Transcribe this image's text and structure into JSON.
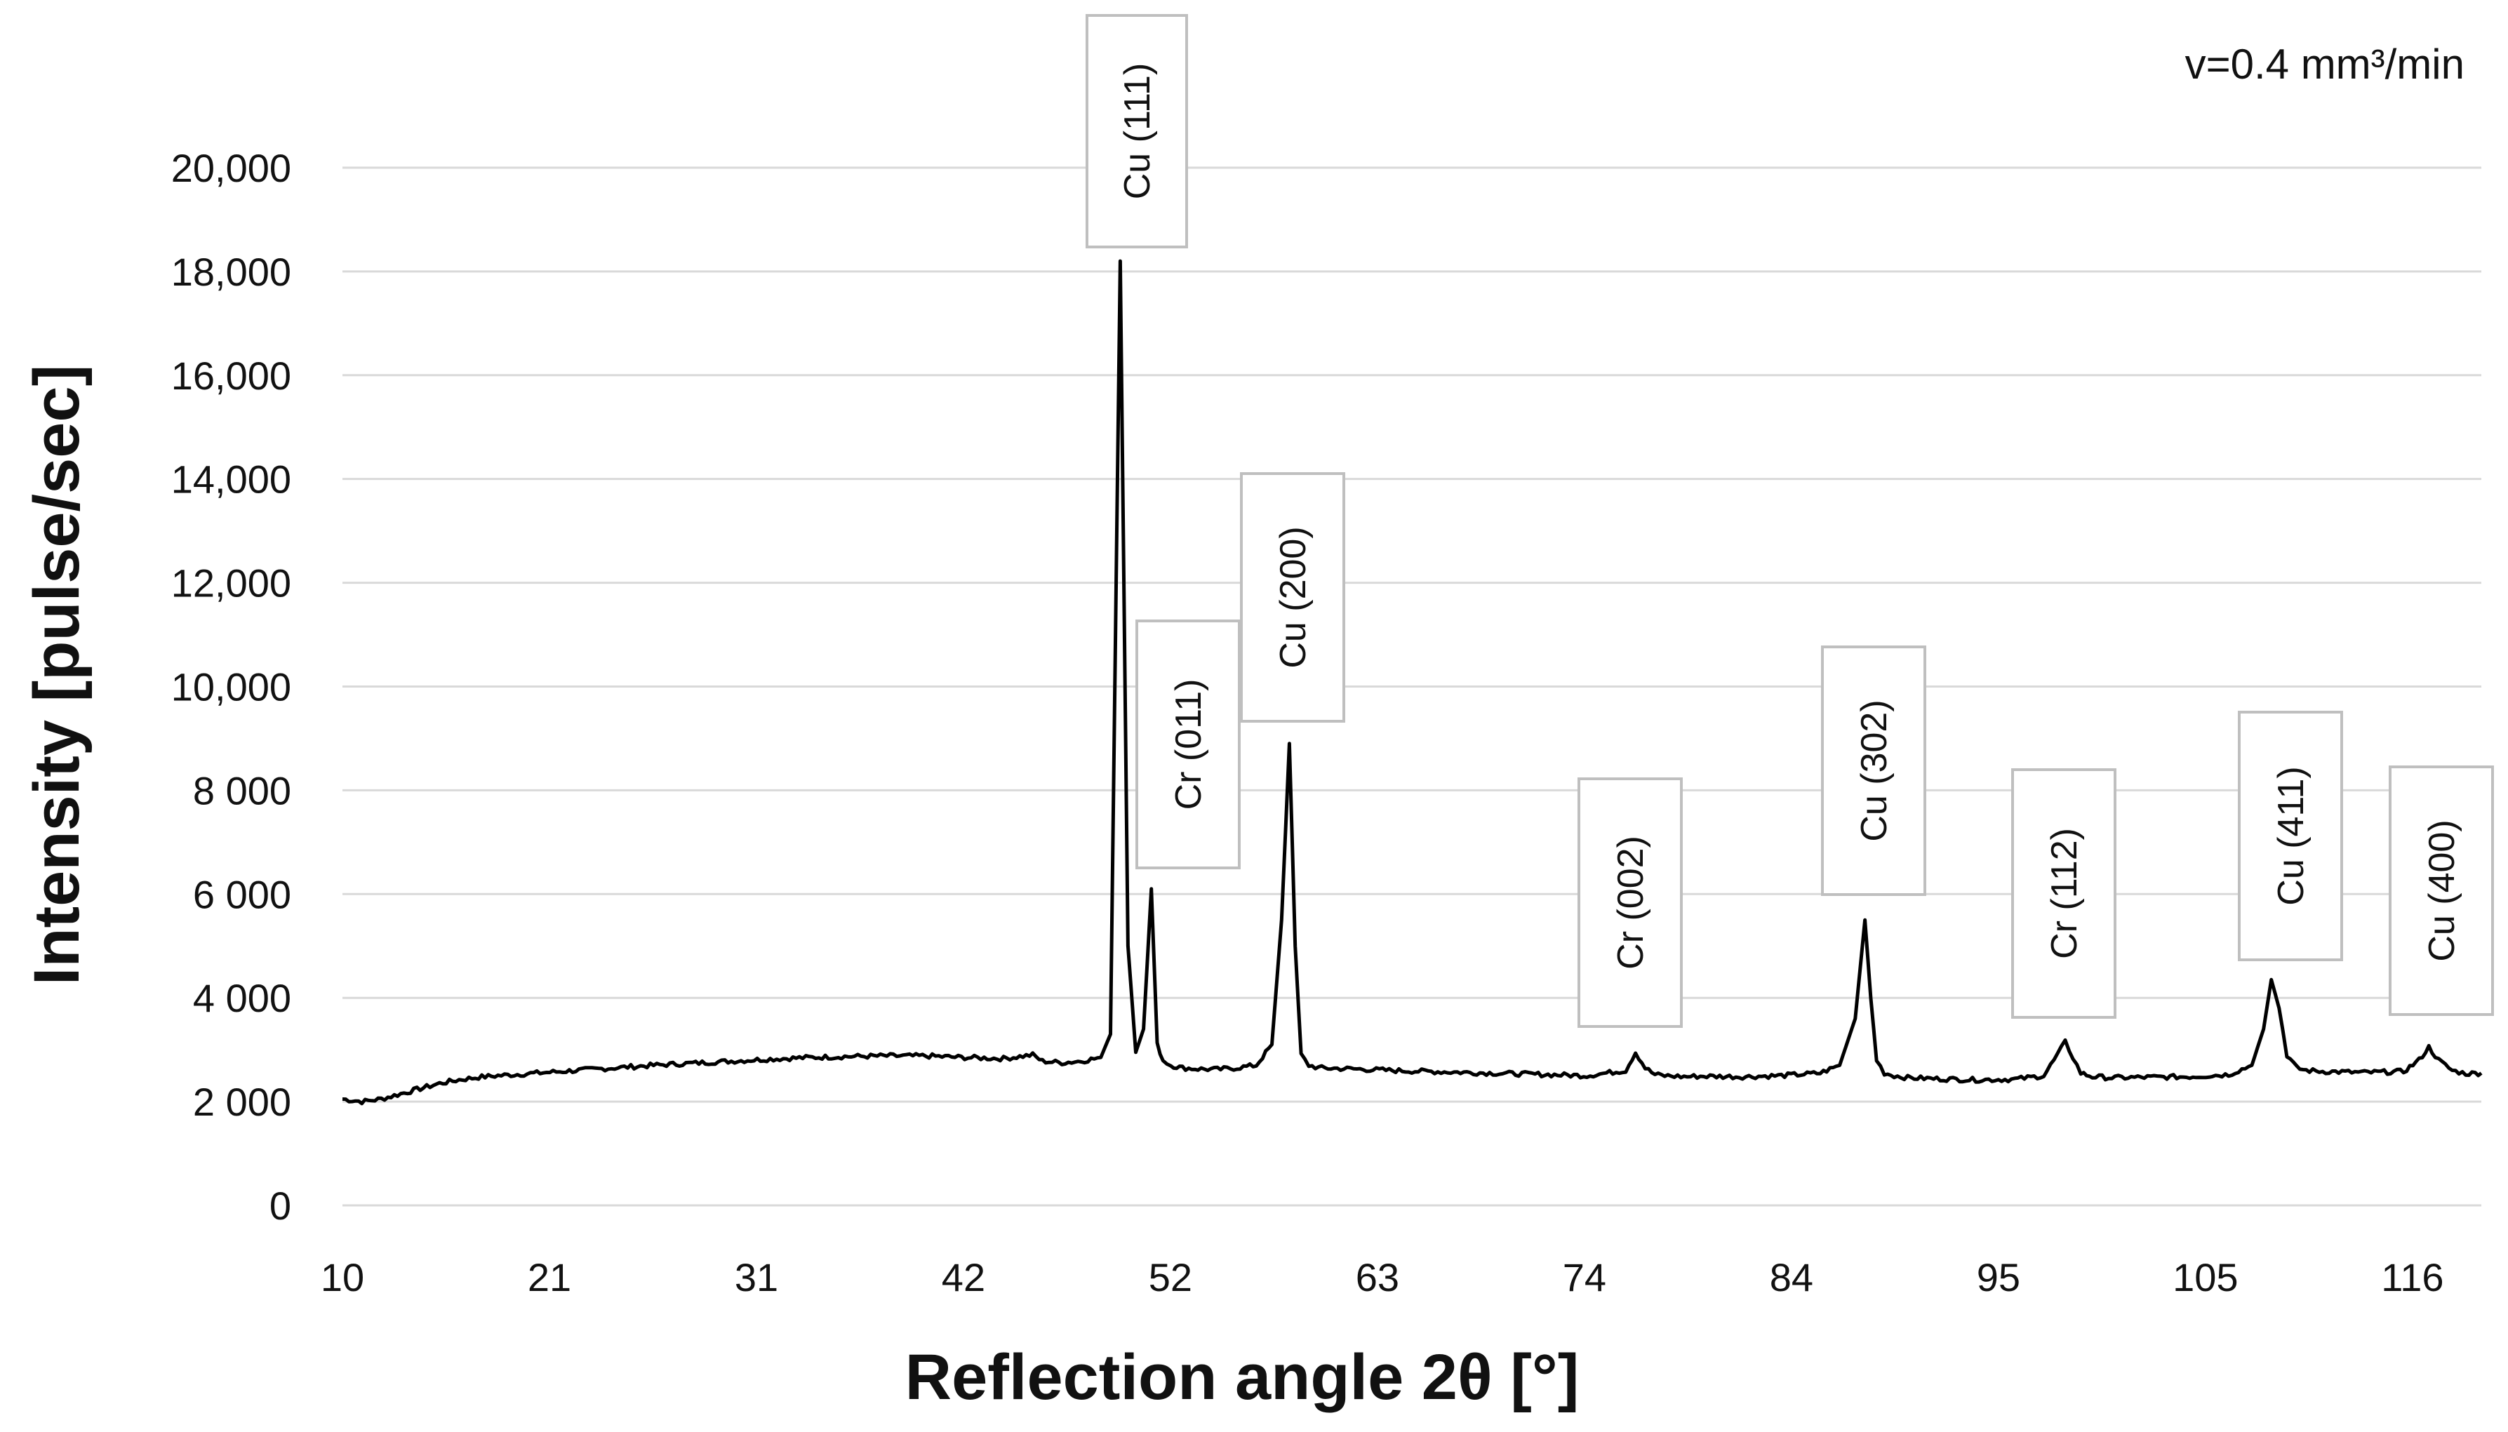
{
  "chart_data": {
    "type": "line",
    "title": "",
    "xlabel": "Reflection angle 2θ [°]",
    "ylabel": "Intensity [pulse/sec]",
    "annotation": "v=0.4 mm³/min",
    "xlim": [
      10,
      120
    ],
    "ylim": [
      0,
      21000
    ],
    "grid": true,
    "x_tick_labels": [
      "10",
      "21",
      "31",
      "42",
      "52",
      "63",
      "74",
      "84",
      "95",
      "105",
      "116"
    ],
    "y_tick_values": [
      0,
      2000,
      4000,
      6000,
      8000,
      10000,
      12000,
      14000,
      16000,
      18000,
      20000
    ],
    "y_tick_labels": [
      "0",
      "2 000",
      "4 000",
      "6 000",
      "8 000",
      "10,000",
      "12,000",
      "14,000",
      "16,000",
      "18,000",
      "20,000"
    ],
    "series": [
      {
        "x": [
          10,
          11,
          12,
          13,
          14,
          15,
          16,
          17,
          18,
          20,
          22,
          24,
          26,
          28,
          30,
          32,
          34,
          36,
          38,
          40,
          42,
          44,
          45.5,
          46,
          47,
          48,
          49,
          49.5,
          50.0,
          50.4,
          50.8,
          51.2,
          51.6,
          51.9,
          52.2,
          52.6,
          53.2,
          54,
          55,
          56,
          57,
          57.8,
          58.3,
          58.7,
          59.0,
          59.3,
          59.7,
          60.2,
          61,
          62,
          64,
          66,
          68,
          70,
          72,
          74,
          76,
          76.5,
          77.0,
          77.5,
          78,
          79,
          80,
          82,
          84,
          86,
          87,
          87.8,
          88.3,
          88.6,
          88.9,
          89.3,
          89.8,
          90.5,
          92,
          94,
          96,
          97.5,
          98.2,
          98.6,
          99.0,
          99.4,
          100,
          101,
          103,
          105,
          107,
          108.2,
          108.8,
          109.2,
          109.6,
          110.0,
          110.5,
          111,
          112,
          114,
          116,
          116.8,
          117.3,
          117.8,
          118.5,
          119.2,
          120
        ],
        "y": [
          2050,
          2000,
          2050,
          2150,
          2250,
          2350,
          2420,
          2470,
          2500,
          2550,
          2600,
          2650,
          2700,
          2740,
          2780,
          2820,
          2850,
          2870,
          2880,
          2880,
          2850,
          2830,
          2900,
          2780,
          2750,
          2780,
          2850,
          3300,
          18200,
          5000,
          2950,
          3400,
          6100,
          3100,
          2800,
          2700,
          2650,
          2630,
          2620,
          2650,
          2700,
          3100,
          5500,
          8900,
          5000,
          2900,
          2700,
          2650,
          2640,
          2630,
          2600,
          2580,
          2560,
          2540,
          2520,
          2500,
          2600,
          2950,
          2650,
          2520,
          2500,
          2480,
          2490,
          2480,
          2500,
          2550,
          2700,
          3600,
          5500,
          4000,
          2800,
          2550,
          2500,
          2460,
          2440,
          2420,
          2430,
          2500,
          2900,
          3150,
          2850,
          2550,
          2480,
          2460,
          2470,
          2480,
          2520,
          2700,
          3400,
          4350,
          3800,
          2900,
          2650,
          2600,
          2580,
          2560,
          2580,
          2800,
          3050,
          2800,
          2600,
          2540,
          2550
        ]
      }
    ],
    "peaks": [
      {
        "label": "Cu (111)",
        "x": 50.0
      },
      {
        "label": "Cr (011)",
        "x": 51.6
      },
      {
        "label": "Cu (200)",
        "x": 58.7
      },
      {
        "label": "Cr (002)",
        "x": 77.0
      },
      {
        "label": "Cu (302)",
        "x": 88.3
      },
      {
        "label": "Cr (112)",
        "x": 98.6
      },
      {
        "label": "Cu (411)",
        "x": 109.2
      },
      {
        "label": "Cu (400)",
        "x": 117.3
      }
    ]
  }
}
